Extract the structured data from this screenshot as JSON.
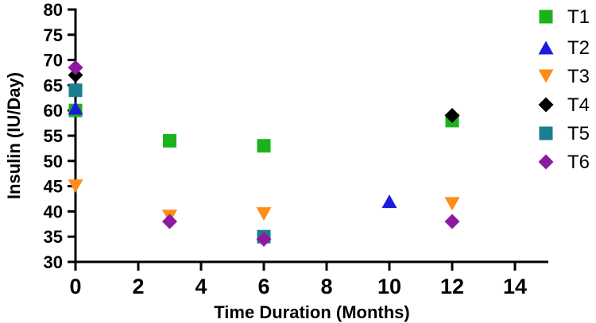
{
  "figure": {
    "background": "#ffffff"
  },
  "chart_data": {
    "type": "scatter",
    "title": "",
    "xlabel": "Time Duration (Months)",
    "ylabel": "Insulin (IU/Day)",
    "xlim": [
      0,
      15
    ],
    "ylim": [
      30,
      80
    ],
    "xticks": [
      0,
      2,
      4,
      6,
      8,
      10,
      12,
      14
    ],
    "yticks": [
      30,
      35,
      40,
      45,
      50,
      55,
      60,
      65,
      70,
      75,
      80
    ],
    "grid": false,
    "axis_color": "#000000",
    "legend_position": "right",
    "series": [
      {
        "name": "T1",
        "marker": "square",
        "color": "#1cb21c",
        "points": [
          [
            0,
            60
          ],
          [
            3,
            54
          ],
          [
            6,
            53
          ],
          [
            12,
            58
          ]
        ]
      },
      {
        "name": "T2",
        "marker": "triangle-up",
        "color": "#1b1bdc",
        "points": [
          [
            0,
            60.5
          ],
          [
            10,
            42
          ]
        ]
      },
      {
        "name": "T3",
        "marker": "triangle-down",
        "color": "#ff8c19",
        "points": [
          [
            0,
            45
          ],
          [
            3,
            39
          ],
          [
            6,
            39.5
          ],
          [
            12,
            41.5
          ]
        ]
      },
      {
        "name": "T4",
        "marker": "diamond",
        "color": "#000000",
        "points": [
          [
            0,
            67
          ],
          [
            12,
            59
          ]
        ]
      },
      {
        "name": "T5",
        "marker": "square",
        "color": "#1b7e93",
        "points": [
          [
            0,
            64
          ],
          [
            6,
            35
          ]
        ]
      },
      {
        "name": "T6",
        "marker": "diamond",
        "color": "#8b1a9e",
        "points": [
          [
            0,
            68.5
          ],
          [
            3,
            38
          ],
          [
            6,
            34.5
          ],
          [
            12,
            38
          ]
        ]
      }
    ]
  }
}
